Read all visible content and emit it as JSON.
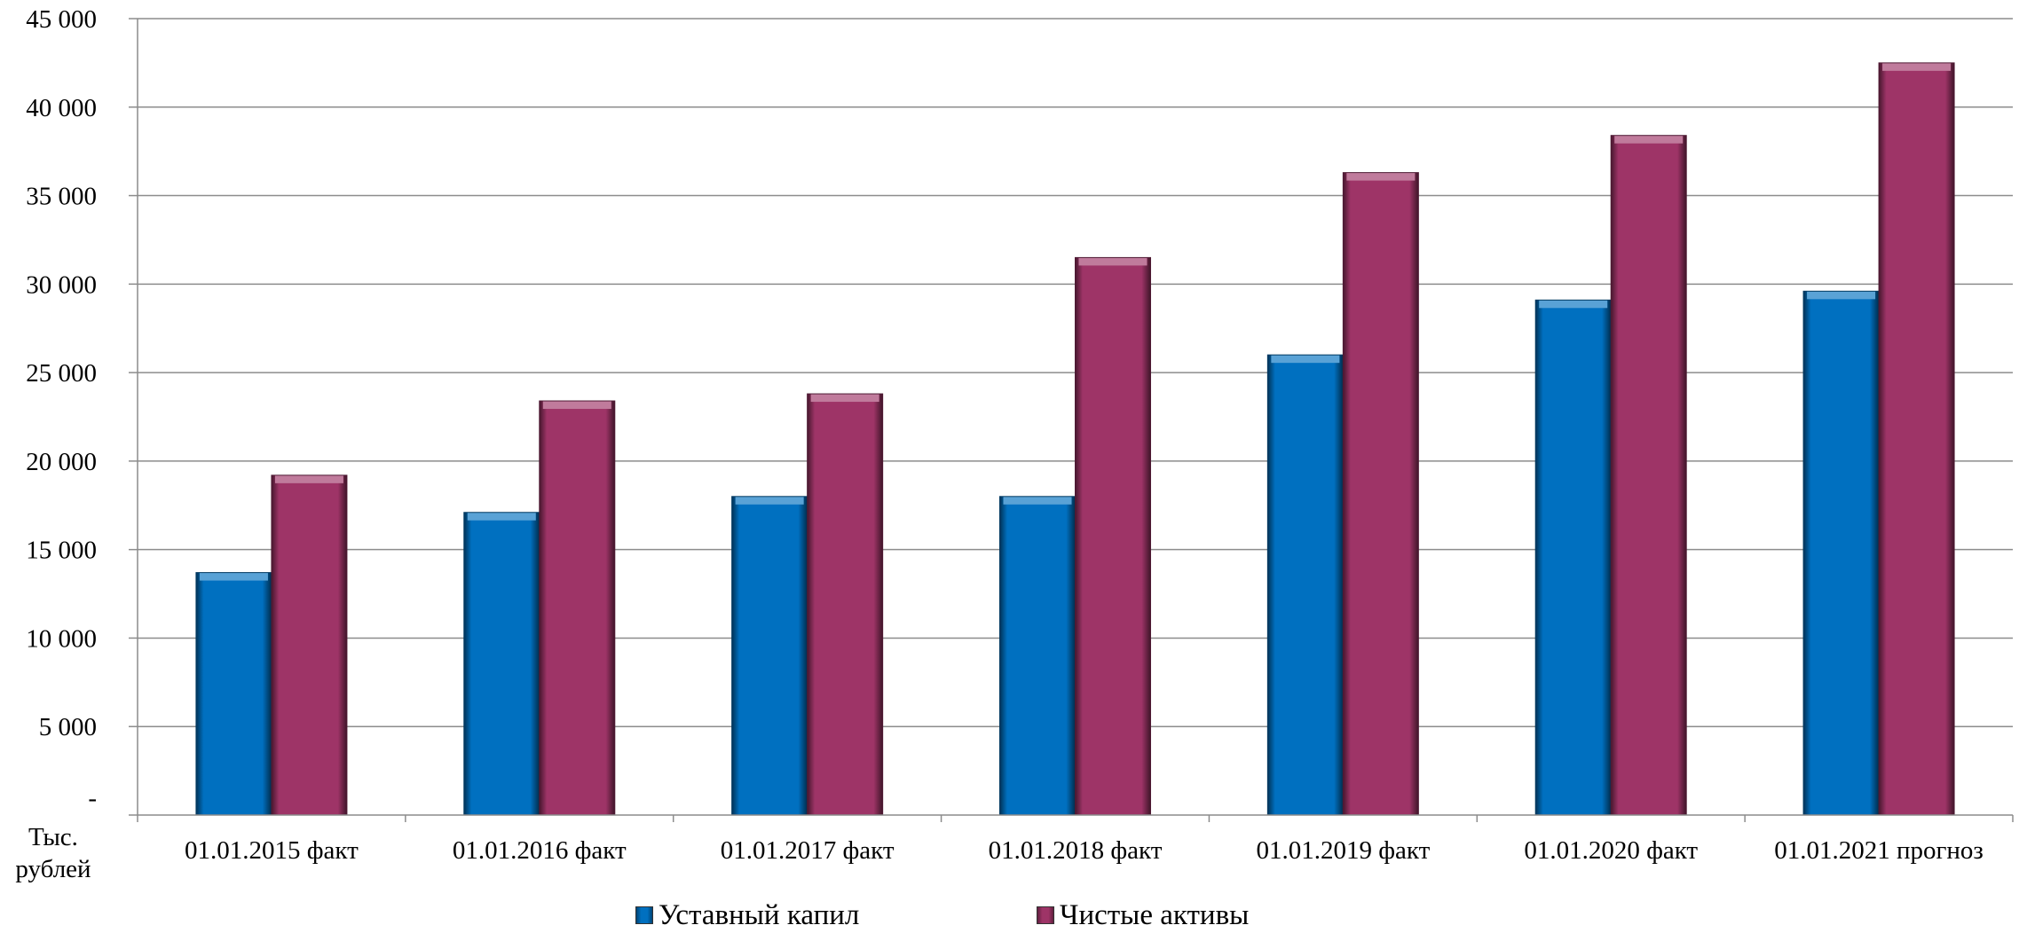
{
  "chart_data": {
    "type": "bar",
    "title": "",
    "xlabel": "",
    "ylabel": "Тыс. рублей",
    "ylabel_lines": [
      "Тыс.",
      "рублей"
    ],
    "categories": [
      "01.01.2015 факт",
      "01.01.2016 факт",
      "01.01.2017 факт",
      "01.01.2018 факт",
      "01.01.2019 факт",
      "01.01.2020 факт",
      "01.01.2021 прогноз"
    ],
    "series": [
      {
        "name": "Уставный капил",
        "color": "#0070C0",
        "values": [
          13700,
          17100,
          18000,
          18000,
          26000,
          29100,
          29600
        ]
      },
      {
        "name": "Чистые активы",
        "color": "#9E3467",
        "values": [
          19200,
          23400,
          23800,
          31500,
          36300,
          38400,
          42500
        ]
      }
    ],
    "ylim": [
      0,
      45000
    ],
    "yticks": [
      0,
      5000,
      10000,
      15000,
      20000,
      25000,
      30000,
      35000,
      40000,
      45000
    ],
    "ytick_labels": [
      "-",
      "5 000",
      "10 000",
      "15 000",
      "20 000",
      "25 000",
      "30 000",
      "35 000",
      "40 000",
      "45 000"
    ],
    "grid": true,
    "legend_position": "bottom"
  }
}
